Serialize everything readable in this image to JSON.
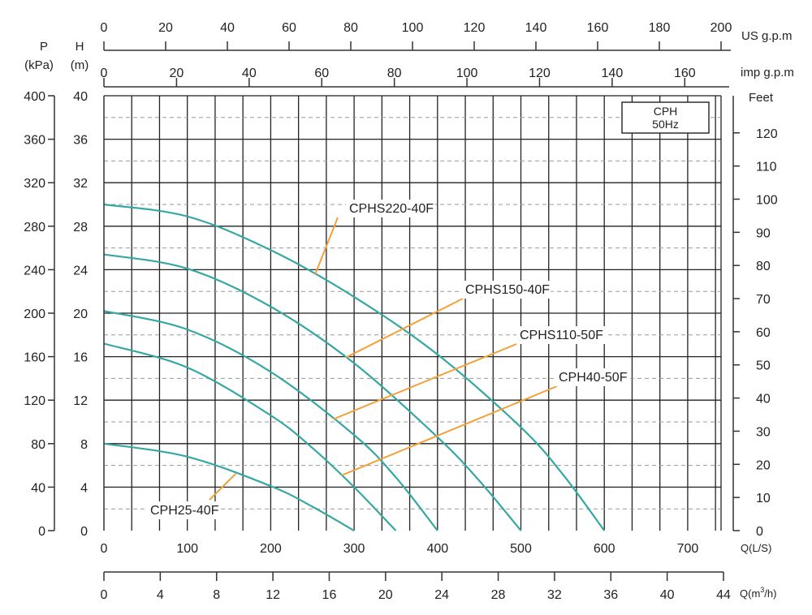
{
  "chart_data": {
    "type": "line",
    "title": "",
    "badge": {
      "line1": "CPH",
      "line2": "50Hz"
    },
    "colors": {
      "curve": "#35A8A3",
      "leader": "#F2A23A",
      "grid": "#222222",
      "grid_dashed": "#9a9a9a",
      "axis": "#333333"
    },
    "x_main": {
      "label": "Q(L/S)",
      "range": [
        0,
        740
      ],
      "ticks": [
        0,
        100,
        200,
        300,
        400,
        500,
        600,
        700
      ],
      "grid_step": 33.333
    },
    "x_m3h": {
      "label_prefix": "Q(m",
      "label_sup": "3",
      "label_suffix": "/h)",
      "range": [
        0,
        44
      ],
      "ticks": [
        0,
        4,
        8,
        12,
        16,
        20,
        24,
        28,
        32,
        36,
        40,
        44
      ]
    },
    "x_us_gpm": {
      "label": "US g.p.m",
      "range": [
        0,
        200
      ],
      "ticks": [
        0,
        20,
        40,
        60,
        80,
        100,
        120,
        140,
        160,
        180,
        200
      ]
    },
    "x_imp_gpm": {
      "label": "imp g.p.m",
      "range": [
        0,
        170
      ],
      "ticks": [
        0,
        20,
        40,
        60,
        80,
        100,
        120,
        140,
        160
      ]
    },
    "y_head": {
      "label_top": "H",
      "label_bottom": "(m)",
      "range": [
        0,
        40
      ],
      "ticks": [
        0,
        4,
        8,
        12,
        16,
        20,
        24,
        28,
        32,
        36,
        40
      ]
    },
    "y_pressure": {
      "label_top": "P",
      "label_bottom": "(kPa)",
      "range": [
        0,
        400
      ],
      "ticks": [
        0,
        40,
        80,
        120,
        160,
        200,
        240,
        280,
        320,
        360,
        400
      ]
    },
    "y_feet": {
      "label": "Feet",
      "range": [
        0,
        131.2
      ],
      "ticks": [
        0,
        10,
        20,
        30,
        40,
        50,
        60,
        70,
        80,
        90,
        100,
        110,
        120
      ]
    },
    "series": [
      {
        "name": "CPHS220-40F",
        "shutoff_head": 30,
        "max_flow": 600,
        "values": [
          [
            0,
            30
          ],
          [
            100,
            28.9
          ],
          [
            200,
            25.8
          ],
          [
            300,
            21.5
          ],
          [
            400,
            16.2
          ],
          [
            500,
            9.5
          ],
          [
            550,
            5.2
          ],
          [
            600,
            0
          ]
        ]
      },
      {
        "name": "CPHS150-40F",
        "shutoff_head": 25.4,
        "max_flow": 500,
        "values": [
          [
            0,
            25.4
          ],
          [
            100,
            24.1
          ],
          [
            200,
            20.6
          ],
          [
            300,
            15.4
          ],
          [
            400,
            8.6
          ],
          [
            450,
            4.6
          ],
          [
            500,
            0
          ]
        ]
      },
      {
        "name": "CPHS110-50F",
        "shutoff_head": 20.2,
        "max_flow": 400,
        "values": [
          [
            0,
            20.2
          ],
          [
            100,
            18.5
          ],
          [
            200,
            14.6
          ],
          [
            300,
            8.8
          ],
          [
            350,
            4.9
          ],
          [
            400,
            0
          ]
        ]
      },
      {
        "name": "CPH40-50F",
        "shutoff_head": 17.2,
        "max_flow": 350,
        "values": [
          [
            0,
            17.2
          ],
          [
            100,
            15.0
          ],
          [
            200,
            10.6
          ],
          [
            250,
            7.6
          ],
          [
            300,
            4.0
          ],
          [
            350,
            0
          ]
        ]
      },
      {
        "name": "CPH25-40F",
        "shutoff_head": 8,
        "max_flow": 300,
        "values": [
          [
            0,
            8
          ],
          [
            100,
            6.8
          ],
          [
            200,
            4.1
          ],
          [
            250,
            2.2
          ],
          [
            300,
            0
          ]
        ]
      }
    ],
    "annotations": [
      {
        "text": "CPHS220-40F",
        "series": "CPHS220-40F",
        "at_flow": 253
      },
      {
        "text": "CPHS150-40F",
        "series": "CPHS150-40F",
        "at_flow": 290
      },
      {
        "text": "CPHS110-50F",
        "series": "CPHS110-50F",
        "at_flow": 275
      },
      {
        "text": "CPH40-50F",
        "series": "CPH40-50F",
        "at_flow": 285
      },
      {
        "text": "CPH25-40F",
        "series": "CPH25-40F",
        "at_flow": 158
      }
    ]
  }
}
